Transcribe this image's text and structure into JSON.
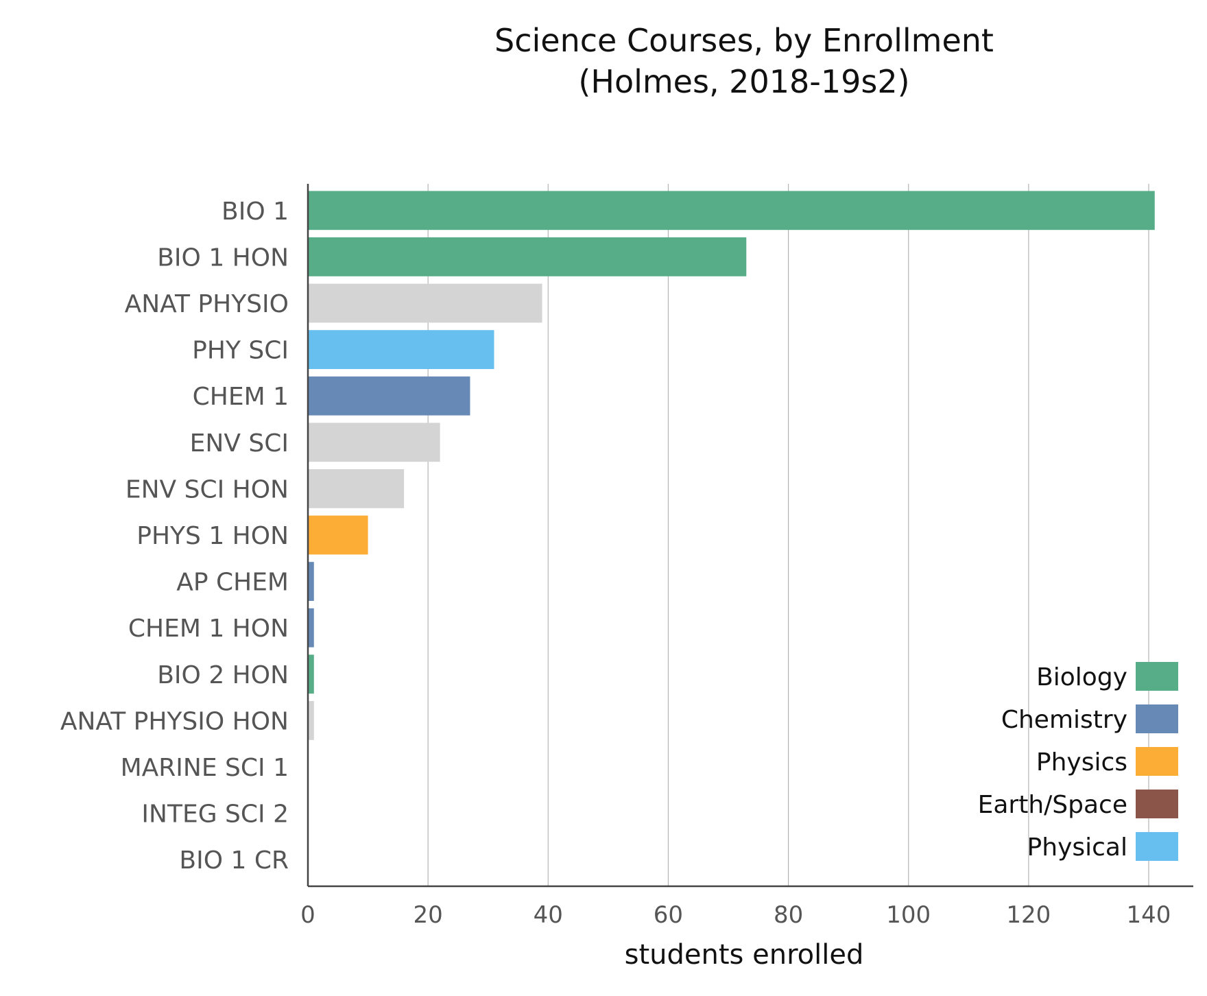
{
  "chart_data": {
    "type": "bar",
    "orientation": "horizontal",
    "title": "Science Courses, by Enrollment",
    "subtitle": "(Holmes, 2018-19s2)",
    "xlabel": "students enrolled",
    "ylabel": "",
    "xlim": [
      0,
      148
    ],
    "xticks": [
      "0",
      "20",
      "40",
      "60",
      "80",
      "100",
      "120",
      "140"
    ],
    "grid": "vertical",
    "legend_position": "bottom-right",
    "categories": [
      "BIO 1",
      "BIO 1 HON",
      "ANAT PHYSIO",
      "PHY SCI",
      "CHEM 1",
      "ENV SCI",
      "ENV SCI HON",
      "PHYS 1 HON",
      "AP CHEM",
      "CHEM 1 HON",
      "BIO 2 HON",
      "ANAT PHYSIO HON",
      "MARINE SCI 1",
      "INTEG SCI 2",
      "BIO 1 CR"
    ],
    "values": [
      141,
      73,
      39,
      31,
      27,
      22,
      16,
      10,
      1,
      1,
      1,
      1,
      0,
      0,
      0
    ],
    "bar_groups": [
      "Biology",
      "Biology",
      "Other",
      "Physical",
      "Chemistry",
      "Other",
      "Other",
      "Physics",
      "Chemistry",
      "Chemistry",
      "Biology",
      "Other",
      "Other",
      "Other",
      "Other"
    ],
    "legend": [
      {
        "name": "Biology",
        "color": "#57ad87"
      },
      {
        "name": "Chemistry",
        "color": "#6689b5"
      },
      {
        "name": "Physics",
        "color": "#fbad36"
      },
      {
        "name": "Earth/Space",
        "color": "#8c5549"
      },
      {
        "name": "Physical",
        "color": "#66bfee"
      }
    ],
    "other_color": "#d4d4d4"
  }
}
